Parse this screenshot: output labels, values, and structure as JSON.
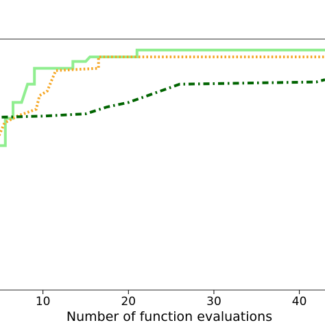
{
  "chart_data": {
    "type": "line",
    "title": "",
    "xlabel": "Number of function evaluations",
    "ylabel": "",
    "xlim": [
      0,
      43
    ],
    "ylim": [
      0,
      1
    ],
    "x_ticks": [
      10,
      20,
      30,
      40
    ],
    "x_tick_labels": [
      "10",
      "20",
      "30",
      "40"
    ],
    "grid": false,
    "legend": "none",
    "series": [
      {
        "style": "solid",
        "color": "#90ee90",
        "points": [
          [
            1,
            0.03
          ],
          [
            1.5,
            0.03
          ],
          [
            1.5,
            0.58
          ],
          [
            3.8,
            0.58
          ],
          [
            3.8,
            0.58
          ],
          [
            5.6,
            0.58
          ],
          [
            5.6,
            0.7
          ],
          [
            6.5,
            0.7
          ],
          [
            6.5,
            0.77
          ],
          [
            7.5,
            0.77
          ],
          [
            8.2,
            0.85
          ],
          [
            9.0,
            0.85
          ],
          [
            9.0,
            0.92
          ],
          [
            13.5,
            0.92
          ],
          [
            13.5,
            0.95
          ],
          [
            15,
            0.95
          ],
          [
            15.5,
            0.97
          ],
          [
            21,
            0.97
          ],
          [
            21,
            1.0
          ],
          [
            43,
            1.0
          ]
        ]
      },
      {
        "style": "dotted",
        "color": "#f5a623",
        "points": [
          [
            0,
            0.49
          ],
          [
            4,
            0.49
          ],
          [
            4,
            0.55
          ],
          [
            5.5,
            0.68
          ],
          [
            7,
            0.71
          ],
          [
            9.2,
            0.74
          ],
          [
            9.6,
            0.8
          ],
          [
            10.5,
            0.82
          ],
          [
            11.5,
            0.91
          ],
          [
            16.5,
            0.92
          ],
          [
            16.5,
            0.97
          ],
          [
            43,
            0.97
          ]
        ]
      },
      {
        "style": "dashdot",
        "color": "#006400",
        "points": [
          [
            0,
            0.7
          ],
          [
            10,
            0.71
          ],
          [
            15,
            0.72
          ],
          [
            17.5,
            0.75
          ],
          [
            20,
            0.77
          ],
          [
            23,
            0.81
          ],
          [
            26,
            0.85
          ],
          [
            42,
            0.86
          ],
          [
            43,
            0.87
          ]
        ]
      }
    ]
  }
}
